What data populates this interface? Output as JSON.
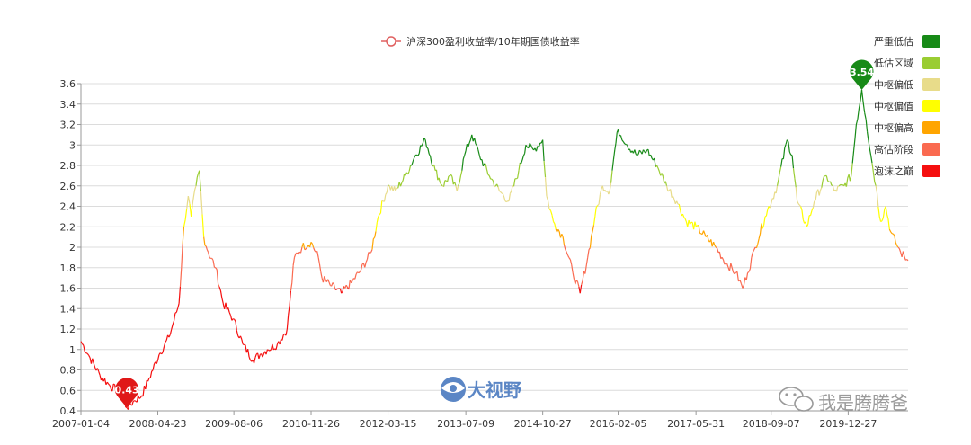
{
  "chart_data": {
    "type": "line",
    "series_name": "沪深300盈利收益率/10年期国债收益率",
    "x_ticks": [
      "2007-01-04",
      "2008-04-23",
      "2009-08-06",
      "2010-11-26",
      "2012-03-15",
      "2013-07-09",
      "2014-10-27",
      "2016-02-05",
      "2017-05-31",
      "2018-09-07",
      "2019-12-27"
    ],
    "x_range": [
      "2007-01-04",
      "2020-12-31"
    ],
    "y_ticks": [
      "0.4",
      "0.6",
      "0.8",
      "1",
      "1.2",
      "1.4",
      "1.6",
      "1.8",
      "2",
      "2.2",
      "2.4",
      "2.6",
      "2.8",
      "3",
      "3.2",
      "3.4",
      "3.6"
    ],
    "ylim": [
      0.4,
      3.6
    ],
    "grid": "horizontal",
    "points": [
      [
        "2007-01-04",
        1.08
      ],
      [
        "2007-03-01",
        0.92
      ],
      [
        "2007-05-01",
        0.75
      ],
      [
        "2007-07-01",
        0.65
      ],
      [
        "2007-09-01",
        0.58
      ],
      [
        "2007-10-15",
        0.43
      ],
      [
        "2007-12-01",
        0.5
      ],
      [
        "2008-01-15",
        0.55
      ],
      [
        "2008-03-01",
        0.72
      ],
      [
        "2008-05-01",
        0.95
      ],
      [
        "2008-07-01",
        1.12
      ],
      [
        "2008-09-01",
        1.45
      ],
      [
        "2008-10-01",
        2.2
      ],
      [
        "2008-10-28",
        2.5
      ],
      [
        "2008-11-15",
        2.3
      ],
      [
        "2008-12-15",
        2.6
      ],
      [
        "2009-01-05",
        2.75
      ],
      [
        "2009-02-01",
        2.1
      ],
      [
        "2009-03-01",
        1.95
      ],
      [
        "2009-04-15",
        1.8
      ],
      [
        "2009-06-01",
        1.45
      ],
      [
        "2009-08-01",
        1.3
      ],
      [
        "2009-10-01",
        1.05
      ],
      [
        "2009-12-01",
        0.9
      ],
      [
        "2010-01-15",
        0.95
      ],
      [
        "2010-03-01",
        1.0
      ],
      [
        "2010-05-01",
        1.05
      ],
      [
        "2010-07-01",
        1.2
      ],
      [
        "2010-08-15",
        1.9
      ],
      [
        "2010-10-01",
        2.0
      ],
      [
        "2010-11-26",
        2.05
      ],
      [
        "2011-01-10",
        1.9
      ],
      [
        "2011-02-01",
        1.7
      ],
      [
        "2011-04-01",
        1.62
      ],
      [
        "2011-06-01",
        1.55
      ],
      [
        "2011-08-01",
        1.65
      ],
      [
        "2011-10-01",
        1.78
      ],
      [
        "2011-12-01",
        1.95
      ],
      [
        "2012-01-15",
        2.3
      ],
      [
        "2012-03-15",
        2.6
      ],
      [
        "2012-05-01",
        2.55
      ],
      [
        "2012-07-01",
        2.7
      ],
      [
        "2012-09-01",
        2.9
      ],
      [
        "2012-11-01",
        3.05
      ],
      [
        "2013-01-01",
        2.75
      ],
      [
        "2013-02-15",
        2.6
      ],
      [
        "2013-04-01",
        2.7
      ],
      [
        "2013-05-15",
        2.55
      ],
      [
        "2013-07-01",
        2.9
      ],
      [
        "2013-08-15",
        3.1
      ],
      [
        "2013-10-01",
        2.9
      ],
      [
        "2013-12-01",
        2.7
      ],
      [
        "2014-02-01",
        2.55
      ],
      [
        "2014-04-01",
        2.45
      ],
      [
        "2014-06-01",
        2.75
      ],
      [
        "2014-07-15",
        3.0
      ],
      [
        "2014-09-01",
        2.95
      ],
      [
        "2014-10-27",
        3.05
      ],
      [
        "2014-11-20",
        2.5
      ],
      [
        "2015-01-01",
        2.25
      ],
      [
        "2015-03-01",
        2.1
      ],
      [
        "2015-05-01",
        1.75
      ],
      [
        "2015-06-15",
        1.55
      ],
      [
        "2015-08-01",
        1.9
      ],
      [
        "2015-09-15",
        2.3
      ],
      [
        "2015-11-01",
        2.6
      ],
      [
        "2015-12-15",
        2.55
      ],
      [
        "2016-01-15",
        2.95
      ],
      [
        "2016-02-05",
        3.15
      ],
      [
        "2016-04-01",
        3.0
      ],
      [
        "2016-06-01",
        2.9
      ],
      [
        "2016-08-01",
        2.95
      ],
      [
        "2016-10-01",
        2.8
      ],
      [
        "2016-12-01",
        2.6
      ],
      [
        "2017-02-01",
        2.45
      ],
      [
        "2017-04-01",
        2.25
      ],
      [
        "2017-06-01",
        2.2
      ],
      [
        "2017-08-01",
        2.1
      ],
      [
        "2017-10-01",
        2.0
      ],
      [
        "2017-12-01",
        1.85
      ],
      [
        "2018-02-01",
        1.75
      ],
      [
        "2018-03-15",
        1.6
      ],
      [
        "2018-04-15",
        1.75
      ],
      [
        "2018-06-01",
        2.0
      ],
      [
        "2018-08-01",
        2.3
      ],
      [
        "2018-10-15",
        2.6
      ],
      [
        "2018-12-15",
        3.05
      ],
      [
        "2019-01-15",
        2.9
      ],
      [
        "2019-02-15",
        2.45
      ],
      [
        "2019-04-15",
        2.2
      ],
      [
        "2019-06-01",
        2.45
      ],
      [
        "2019-08-15",
        2.7
      ],
      [
        "2019-10-01",
        2.55
      ],
      [
        "2019-12-01",
        2.6
      ],
      [
        "2020-01-15",
        2.7
      ],
      [
        "2020-02-15",
        3.2
      ],
      [
        "2020-03-20",
        3.54
      ],
      [
        "2020-04-15",
        3.25
      ],
      [
        "2020-05-15",
        2.9
      ],
      [
        "2020-06-15",
        2.6
      ],
      [
        "2020-07-15",
        2.25
      ],
      [
        "2020-08-15",
        2.4
      ],
      [
        "2020-09-15",
        2.15
      ],
      [
        "2020-10-15",
        2.05
      ],
      [
        "2020-11-15",
        1.95
      ],
      [
        "2020-12-31",
        1.87
      ]
    ],
    "min_marker": {
      "label": "0.43",
      "date": "2007-10-15",
      "value": 0.43,
      "color": "#e01818"
    },
    "max_marker": {
      "label": "3.54",
      "date": "2020-03-20",
      "value": 3.54,
      "color": "#178a17"
    },
    "bands": [
      {
        "label": "严重低估",
        "color": "#178a17",
        "min": 2.8
      },
      {
        "label": "低估区域",
        "color": "#9acd32",
        "min": 2.6
      },
      {
        "label": "中枢偏低",
        "color": "#e8dc8a",
        "min": 2.4
      },
      {
        "label": "中枢偏值",
        "color": "#ffff00",
        "min": 2.2
      },
      {
        "label": "中枢偏高",
        "color": "#ffa500",
        "min": 2.0
      },
      {
        "label": "高估阶段",
        "color": "#fa6a50",
        "min": 1.6
      },
      {
        "label": "泡沫之巅",
        "color": "#f50f0f",
        "min": 0.0
      }
    ]
  },
  "watermark_center": "大视野",
  "watermark_wechat": "我是腾腾爸"
}
